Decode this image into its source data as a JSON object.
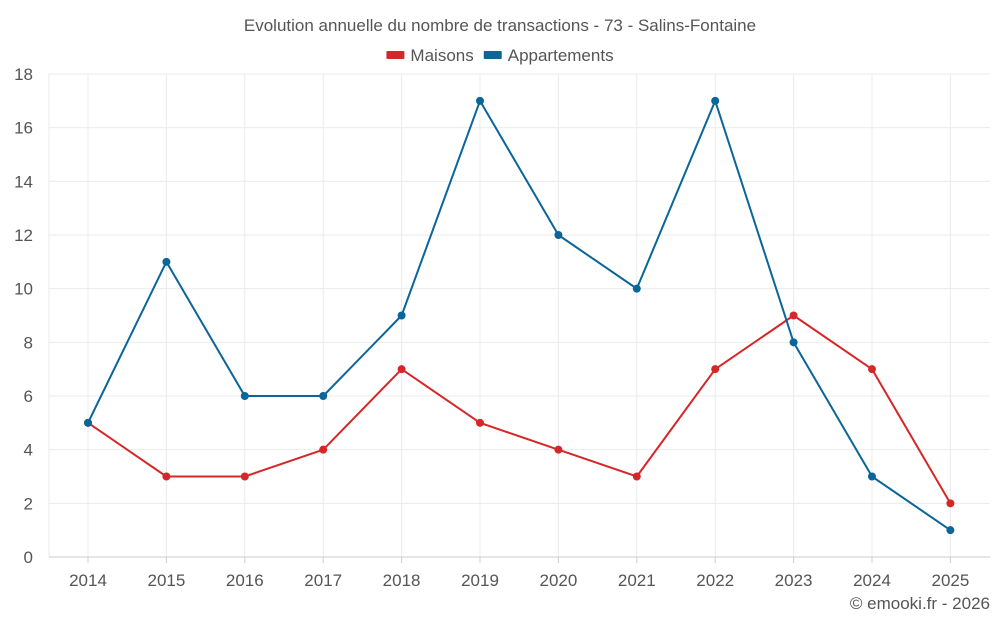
{
  "chart_data": {
    "type": "line",
    "title": "Evolution annuelle du nombre de transactions - 73 - Salins-Fontaine",
    "categories": [
      "2014",
      "2015",
      "2016",
      "2017",
      "2018",
      "2019",
      "2020",
      "2021",
      "2022",
      "2023",
      "2024",
      "2025"
    ],
    "series": [
      {
        "name": "Maisons",
        "color": "#d62728",
        "values": [
          5,
          3,
          3,
          4,
          7,
          5,
          4,
          3,
          7,
          9,
          7,
          2
        ]
      },
      {
        "name": "Appartements",
        "color": "#0a6599",
        "values": [
          5,
          11,
          6,
          6,
          9,
          17,
          12,
          10,
          17,
          8,
          3,
          1
        ]
      }
    ],
    "y_ticks": [
      "0",
      "2",
      "4",
      "6",
      "8",
      "10",
      "12",
      "14",
      "16",
      "18"
    ],
    "ylim": [
      0,
      18
    ],
    "xlabel": "",
    "ylabel": "",
    "grid": true,
    "legend_position": "top-center"
  },
  "footer": {
    "credit": "© emooki.fr - 2026"
  },
  "colors": {
    "grid": "#ebebeb",
    "axis": "#cccccc",
    "text": "#555555"
  }
}
